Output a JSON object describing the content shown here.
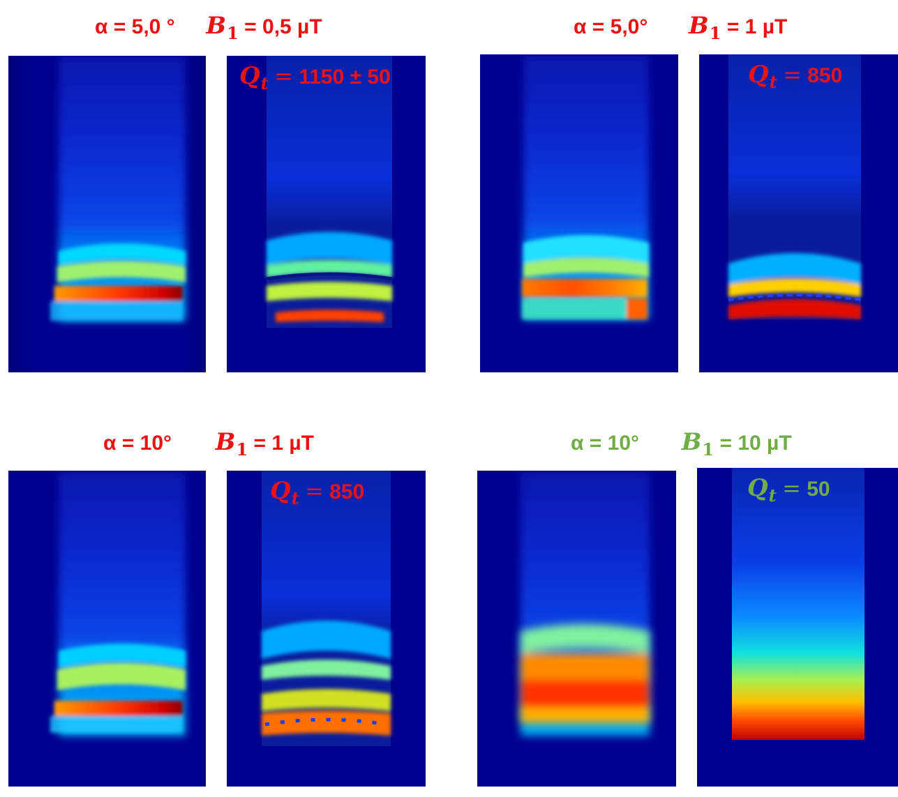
{
  "colors": {
    "red": "#ee1111",
    "green": "#70ad47",
    "background": "#00008f"
  },
  "quadrants": [
    {
      "alpha_label": "α = 5,0 °",
      "b1_symbol": "B",
      "b1_sub": "1",
      "b1_value": "= 0,5 µT",
      "q_symbol": "Q",
      "q_sub": "t",
      "q_eq": "=",
      "q_value": "1150 ± 50",
      "color": "#ee1111"
    },
    {
      "alpha_label": "α = 5,0°",
      "b1_symbol": "B",
      "b1_sub": "1",
      "b1_value": "= 1 µT",
      "q_symbol": "Q",
      "q_sub": "t",
      "q_eq": "=",
      "q_value": "850",
      "color": "#ee1111"
    },
    {
      "alpha_label": "α = 10°",
      "b1_symbol": "B",
      "b1_sub": "1",
      "b1_value": "= 1 µT",
      "q_symbol": "Q",
      "q_sub": "t",
      "q_eq": "=",
      "q_value": "850",
      "color": "#ee1111"
    },
    {
      "alpha_label": "α = 10°",
      "b1_symbol": "B",
      "b1_sub": "1",
      "b1_value": "= 10 µT",
      "q_symbol": "Q",
      "q_sub": "t",
      "q_eq": "=",
      "q_value": "50",
      "color": "#70ad47"
    }
  ],
  "images": [
    {
      "kind": "experimental-heatmap",
      "state": "banded-hot-layer"
    },
    {
      "kind": "simulated-heatmap",
      "state": "curved-bands"
    },
    {
      "kind": "experimental-heatmap",
      "state": "banded-hot-layer"
    },
    {
      "kind": "simulated-heatmap",
      "state": "curved-bands-hot-bottom"
    },
    {
      "kind": "experimental-heatmap",
      "state": "banded-hot-layer"
    },
    {
      "kind": "simulated-heatmap",
      "state": "curved-bands-beaded"
    },
    {
      "kind": "experimental-heatmap",
      "state": "broad-hot-layer"
    },
    {
      "kind": "simulated-heatmap",
      "state": "smooth-gradient"
    }
  ]
}
